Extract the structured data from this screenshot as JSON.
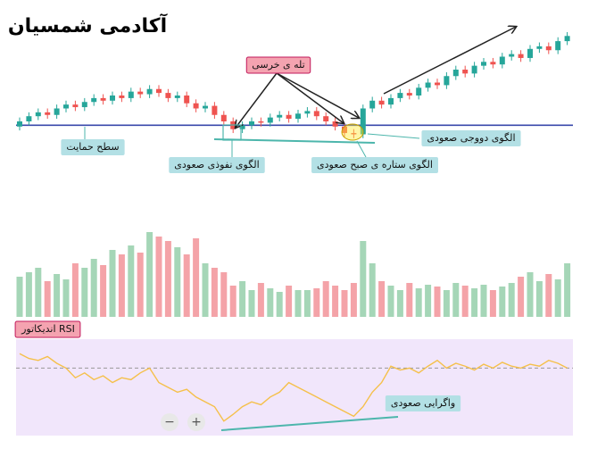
{
  "header": {
    "title": "آکادمی شمسیان"
  },
  "controls": [
    "−",
    "+"
  ],
  "chart_data": [
    {
      "type": "candlestick",
      "open": [
        16,
        20,
        24,
        27,
        25,
        30,
        33,
        31,
        35,
        38,
        36,
        40,
        38,
        43,
        41,
        45,
        42,
        38,
        40,
        34,
        30,
        32,
        25,
        20,
        14,
        17,
        20,
        19,
        23,
        25,
        22,
        26,
        28,
        24,
        20,
        16,
        11,
        10,
        30,
        36,
        33,
        38,
        42,
        40,
        46,
        50,
        48,
        55,
        60,
        57,
        63,
        66,
        64,
        70,
        72,
        69,
        76,
        78,
        75,
        82
      ],
      "high": [
        23,
        27,
        30,
        30,
        33,
        36,
        36,
        38,
        41,
        41,
        43,
        43,
        46,
        46,
        48,
        48,
        45,
        43,
        43,
        37,
        35,
        35,
        28,
        23,
        20,
        23,
        23,
        26,
        28,
        28,
        29,
        31,
        31,
        27,
        23,
        19,
        14,
        33,
        39,
        39,
        41,
        45,
        45,
        49,
        53,
        53,
        58,
        63,
        63,
        66,
        69,
        69,
        73,
        75,
        75,
        79,
        81,
        81,
        85,
        89
      ],
      "low": [
        13,
        17,
        21,
        22,
        22,
        27,
        28,
        28,
        32,
        33,
        33,
        35,
        35,
        38,
        38,
        39,
        35,
        35,
        31,
        27,
        27,
        22,
        17,
        11,
        11,
        14,
        16,
        16,
        20,
        19,
        19,
        23,
        21,
        17,
        13,
        8,
        7,
        7,
        27,
        30,
        30,
        35,
        37,
        37,
        43,
        45,
        45,
        52,
        54,
        54,
        60,
        61,
        61,
        67,
        66,
        66,
        73,
        72,
        72,
        79
      ],
      "close": [
        20,
        24,
        27,
        25,
        30,
        33,
        31,
        35,
        38,
        36,
        40,
        38,
        43,
        41,
        45,
        42,
        38,
        40,
        34,
        30,
        32,
        25,
        20,
        14,
        17,
        20,
        19,
        23,
        25,
        22,
        26,
        28,
        24,
        20,
        16,
        11,
        10,
        30,
        36,
        33,
        38,
        42,
        40,
        46,
        50,
        48,
        55,
        60,
        57,
        63,
        66,
        64,
        70,
        72,
        69,
        76,
        78,
        75,
        82,
        86
      ],
      "up_color": "#26a69a",
      "down_color": "#ef5350",
      "ylim": [
        0,
        100
      ],
      "support": 17,
      "support_color": "#3949ab",
      "annotations": [
        "تله ی خرسی",
        "سطح حمایت",
        "الگوی نفوذی صعودی",
        "الگوی ستاره ی صبح صعودی",
        "الگوی دووجی صعودی"
      ]
    },
    {
      "type": "bar",
      "values": [
        45,
        50,
        55,
        40,
        48,
        42,
        60,
        55,
        65,
        58,
        75,
        70,
        80,
        72,
        95,
        90,
        85,
        78,
        70,
        88,
        60,
        55,
        50,
        35,
        40,
        30,
        38,
        32,
        28,
        35,
        30,
        30,
        32,
        40,
        35,
        30,
        38,
        85,
        60,
        40,
        35,
        30,
        38,
        32,
        36,
        34,
        30,
        38,
        35,
        32,
        36,
        30,
        34,
        38,
        45,
        50,
        40,
        48,
        42,
        60
      ],
      "up_color": "#a5d6b7",
      "down_color": "#f4a3a8",
      "ylim": [
        0,
        100
      ]
    },
    {
      "type": "line",
      "title": "اندیکاتور RSI",
      "values": [
        85,
        80,
        78,
        82,
        75,
        70,
        60,
        65,
        58,
        62,
        55,
        60,
        58,
        65,
        70,
        55,
        50,
        45,
        48,
        40,
        35,
        30,
        15,
        22,
        30,
        35,
        32,
        40,
        45,
        55,
        50,
        45,
        40,
        35,
        30,
        25,
        20,
        30,
        45,
        55,
        72,
        68,
        70,
        65,
        72,
        78,
        70,
        75,
        72,
        68,
        74,
        70,
        76,
        72,
        70,
        74,
        72,
        78,
        75,
        70
      ],
      "color": "#f5c04a",
      "background": "#f1e6fb",
      "ylim": [
        0,
        100
      ],
      "reference": 70,
      "annotations": [
        "واگرایی صعودی"
      ]
    }
  ]
}
